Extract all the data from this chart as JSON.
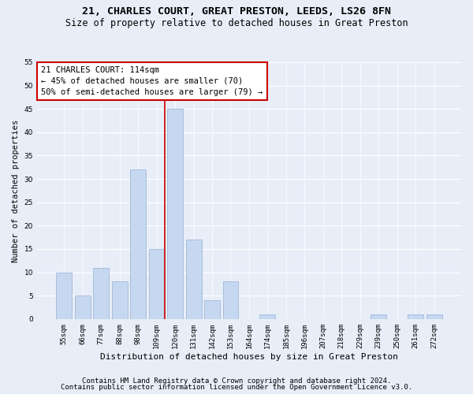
{
  "title1": "21, CHARLES COURT, GREAT PRESTON, LEEDS, LS26 8FN",
  "title2": "Size of property relative to detached houses in Great Preston",
  "xlabel": "Distribution of detached houses by size in Great Preston",
  "ylabel": "Number of detached properties",
  "categories": [
    "55sqm",
    "66sqm",
    "77sqm",
    "88sqm",
    "98sqm",
    "109sqm",
    "120sqm",
    "131sqm",
    "142sqm",
    "153sqm",
    "164sqm",
    "174sqm",
    "185sqm",
    "196sqm",
    "207sqm",
    "218sqm",
    "229sqm",
    "239sqm",
    "250sqm",
    "261sqm",
    "272sqm"
  ],
  "values": [
    10,
    5,
    11,
    8,
    32,
    15,
    45,
    17,
    4,
    8,
    0,
    1,
    0,
    0,
    0,
    0,
    0,
    1,
    0,
    1,
    1
  ],
  "bar_color": "#c5d8f0",
  "bar_edge_color": "#a0b8d8",
  "red_line_color": "#cc0000",
  "box_edge_color": "#cc0000",
  "annotation_box_text": "21 CHARLES COURT: 114sqm\n← 45% of detached houses are smaller (70)\n50% of semi-detached houses are larger (79) →",
  "ylim": [
    0,
    55
  ],
  "background_color": "#e8eef8",
  "plot_bg_color": "#e8eef8",
  "footer1": "Contains HM Land Registry data © Crown copyright and database right 2024.",
  "footer2": "Contains public sector information licensed under the Open Government Licence v3.0.",
  "grid_color": "#ffffff",
  "title1_fontsize": 9.5,
  "title2_fontsize": 8.5,
  "xlabel_fontsize": 8,
  "ylabel_fontsize": 7.5,
  "tick_fontsize": 6.5,
  "annotation_fontsize": 7.5,
  "footer_fontsize": 6.5
}
